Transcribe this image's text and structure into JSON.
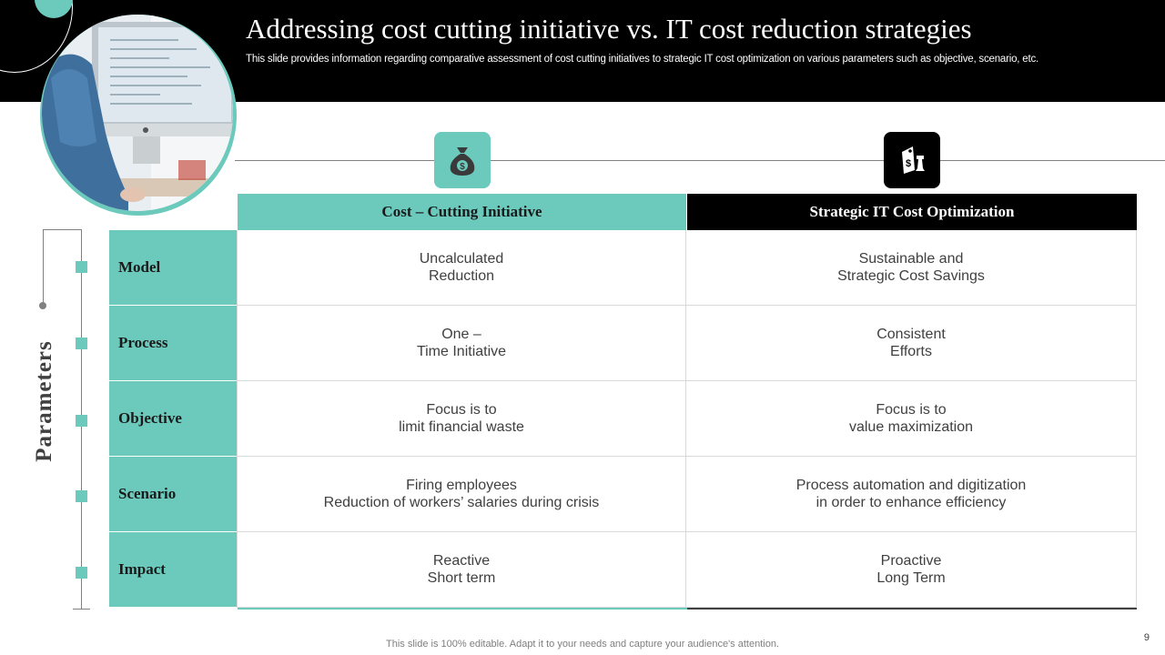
{
  "slide": {
    "title": "Addressing cost cutting initiative vs. IT cost reduction strategies",
    "subtitle": "This slide provides information regarding comparative assessment of cost cutting initiatives to strategic IT cost optimization on various parameters such as objective, scenario, etc.",
    "side_label": "Parameters",
    "footer": "This slide is 100% editable. Adapt it to your needs and capture your audience's attention.",
    "page_number": "9"
  },
  "colors": {
    "accent": "#6ccabd",
    "header_bg": "#000000",
    "body_text": "#404040"
  },
  "icons": {
    "left": "money-bag-icon",
    "right": "price-tag-chess-icon"
  },
  "table": {
    "columns": [
      {
        "label": "Cost – Cutting Initiative"
      },
      {
        "label": "Strategic IT Cost Optimization"
      }
    ],
    "rows": [
      {
        "label": "Model",
        "cells": [
          [
            "Uncalculated",
            "Reduction"
          ],
          [
            "Sustainable and",
            "Strategic Cost Savings"
          ]
        ]
      },
      {
        "label": "Process",
        "cells": [
          [
            "One –",
            "Time Initiative"
          ],
          [
            "Consistent",
            "Efforts"
          ]
        ]
      },
      {
        "label": "Objective",
        "cells": [
          [
            "Focus is to",
            "limit financial waste"
          ],
          [
            "Focus is to",
            "value maximization"
          ]
        ]
      },
      {
        "label": "Scenario",
        "cells": [
          [
            "Firing employees",
            "Reduction of workers’ salaries during crisis"
          ],
          [
            "Process automation and digitization",
            "in order to enhance efficiency"
          ]
        ]
      },
      {
        "label": "Impact",
        "cells": [
          [
            "Reactive",
            "Short term"
          ],
          [
            "Proactive",
            "Long Term"
          ]
        ]
      }
    ]
  }
}
